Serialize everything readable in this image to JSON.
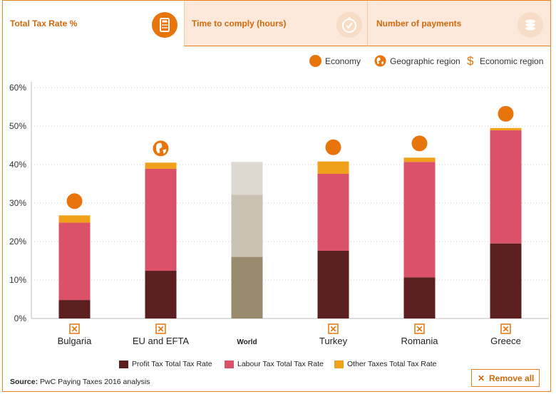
{
  "tabs": [
    {
      "label": "Total Tax Rate %",
      "icon": "calculator-icon",
      "active": true
    },
    {
      "label": "Time to comply (hours)",
      "icon": "stopwatch-icon",
      "active": false
    },
    {
      "label": "Number of payments",
      "icon": "coins-icon",
      "active": false
    }
  ],
  "legend_top": {
    "economy": "Economy",
    "geographic": "Geographic region",
    "economic": "Economic region",
    "economic_symbol": "$"
  },
  "colors": {
    "accent": "#e8740c",
    "profit": "#5c1f1f",
    "labour": "#db5168",
    "other": "#f0a01a",
    "world_profit": "#9a8b6e",
    "world_labour": "#cac2b3",
    "world_other": "#dedad2"
  },
  "chart_data": {
    "type": "bar",
    "stacked": true,
    "categories": [
      "Bulgaria",
      "EU and EFTA",
      "World",
      "Turkey",
      "Romania",
      "Greece"
    ],
    "category_markers": [
      "economy",
      "geographic",
      "none",
      "economy",
      "economy",
      "economy"
    ],
    "removable": [
      true,
      true,
      false,
      true,
      true,
      true
    ],
    "series": [
      {
        "name": "Profit Tax Total Tax Rate",
        "values": [
          4.8,
          12.4,
          16.0,
          17.6,
          10.7,
          19.5
        ]
      },
      {
        "name": "Labour Tax Total Tax Rate",
        "values": [
          20.1,
          26.5,
          16.2,
          20.0,
          30.0,
          29.4
        ]
      },
      {
        "name": "Other Taxes Total Tax Rate",
        "values": [
          1.9,
          1.6,
          8.5,
          3.2,
          1.1,
          0.6
        ]
      }
    ],
    "ylim": [
      0,
      60
    ],
    "yticks": [
      0,
      10,
      20,
      30,
      40,
      50,
      60
    ],
    "ytick_labels": [
      "0%",
      "10%",
      "20%",
      "30%",
      "40%",
      "50%",
      "60%"
    ],
    "grid": true
  },
  "source": {
    "label": "Source:",
    "text": "PwC Paying Taxes 2016 analysis"
  },
  "remove_all": {
    "label": "Remove all",
    "icon": "x-icon"
  }
}
